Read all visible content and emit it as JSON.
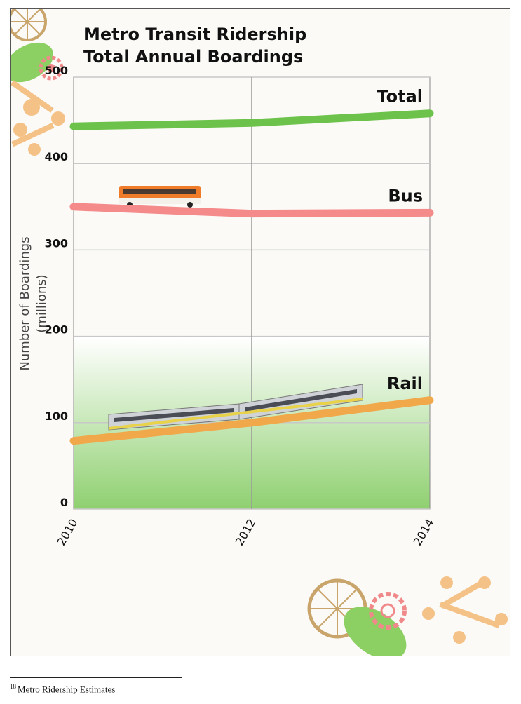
{
  "chart_data": {
    "type": "line",
    "title": "Metro Transit Ridership",
    "subtitle": "Total Annual Boardings",
    "ylabel": "Number of Boardings",
    "ylabel_unit": "(millions)",
    "xlabel": "",
    "x": [
      2010,
      2012,
      2014
    ],
    "xlim": [
      2010,
      2014
    ],
    "ylim": [
      0,
      500
    ],
    "yticks": [
      0,
      100,
      200,
      300,
      400,
      500
    ],
    "grid": true,
    "series": [
      {
        "name": "Total",
        "values": [
          443,
          447,
          458
        ],
        "color": "#6cc24a"
      },
      {
        "name": "Bus",
        "values": [
          350,
          342,
          343
        ],
        "color": "#f48a8a"
      },
      {
        "name": "Rail",
        "values": [
          79,
          100,
          126
        ],
        "color": "#f0a84a"
      }
    ]
  },
  "footnote": {
    "number": "18",
    "text": "Metro Ridership Estimates"
  }
}
